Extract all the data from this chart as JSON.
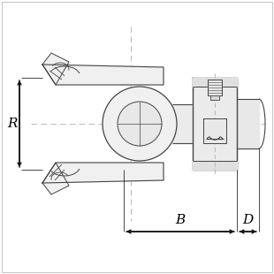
{
  "bg_color": "#ffffff",
  "line_color": "#444444",
  "dim_color": "#000000",
  "centerline_color": "#b0b0b0",
  "part_fill": "#f0f0f0",
  "part_edge": "#444444",
  "fig_width": 3.1,
  "fig_height": 3.1,
  "dpi": 100,
  "R_label": "R",
  "B_label": "B",
  "D_label": "D"
}
